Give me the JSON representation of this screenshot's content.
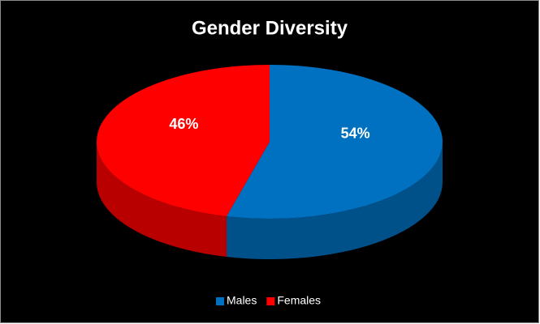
{
  "chart_data": {
    "type": "pie",
    "title": "Gender Diversity",
    "categories": [
      "Males",
      "Females"
    ],
    "values": [
      54,
      46
    ],
    "value_labels": [
      "54%",
      "46%"
    ],
    "colors": [
      "#0070C0",
      "#FF0000"
    ],
    "legend": "bottom"
  }
}
